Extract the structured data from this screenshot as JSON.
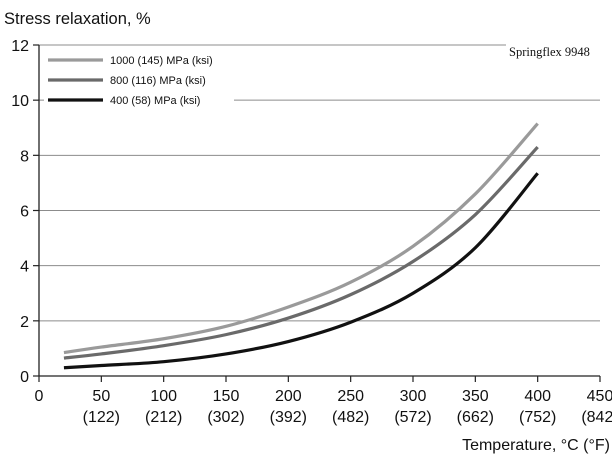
{
  "chart_data": {
    "type": "line",
    "title": "Stress relaxation, %",
    "annotation": "Springflex 9948",
    "xlabel": "Temperature, °C (°F)",
    "ylabel": "",
    "xlim": [
      0,
      450
    ],
    "ylim": [
      0,
      12
    ],
    "grid": {
      "horizontal": true,
      "vertical": false
    },
    "legend_position": "top-left",
    "x_ticks": [
      {
        "value": 0,
        "label": "0",
        "sublabel": ""
      },
      {
        "value": 50,
        "label": "50",
        "sublabel": "(122)"
      },
      {
        "value": 100,
        "label": "100",
        "sublabel": "(212)"
      },
      {
        "value": 150,
        "label": "150",
        "sublabel": "(302)"
      },
      {
        "value": 200,
        "label": "200",
        "sublabel": "(392)"
      },
      {
        "value": 250,
        "label": "250",
        "sublabel": "(482)"
      },
      {
        "value": 300,
        "label": "300",
        "sublabel": "(572)"
      },
      {
        "value": 350,
        "label": "350",
        "sublabel": "(662)"
      },
      {
        "value": 400,
        "label": "400",
        "sublabel": "(752)"
      },
      {
        "value": 450,
        "label": "450",
        "sublabel": "(842)"
      }
    ],
    "y_ticks": [
      {
        "value": 0,
        "label": "0"
      },
      {
        "value": 2,
        "label": "2"
      },
      {
        "value": 4,
        "label": "4"
      },
      {
        "value": 6,
        "label": "6"
      },
      {
        "value": 8,
        "label": "8"
      },
      {
        "value": 10,
        "label": "10"
      },
      {
        "value": 12,
        "label": "12"
      }
    ],
    "series": [
      {
        "name": "1000 (145) MPa (ksi)",
        "color": "#9a9a9a",
        "x": [
          20,
          50,
          100,
          150,
          200,
          250,
          300,
          350,
          400
        ],
        "y": [
          0.85,
          1.05,
          1.35,
          1.8,
          2.5,
          3.4,
          4.7,
          6.6,
          9.15
        ]
      },
      {
        "name": "800 (116) MPa (ksi)",
        "color": "#6a6a6a",
        "x": [
          20,
          50,
          100,
          150,
          200,
          250,
          300,
          350,
          400
        ],
        "y": [
          0.65,
          0.8,
          1.1,
          1.5,
          2.1,
          2.95,
          4.15,
          5.85,
          8.3
        ]
      },
      {
        "name": "400 (58) MPa (ksi)",
        "color": "#111111",
        "x": [
          20,
          50,
          100,
          150,
          200,
          250,
          300,
          350,
          400
        ],
        "y": [
          0.3,
          0.38,
          0.52,
          0.8,
          1.25,
          1.95,
          3.0,
          4.65,
          7.35
        ]
      }
    ]
  }
}
